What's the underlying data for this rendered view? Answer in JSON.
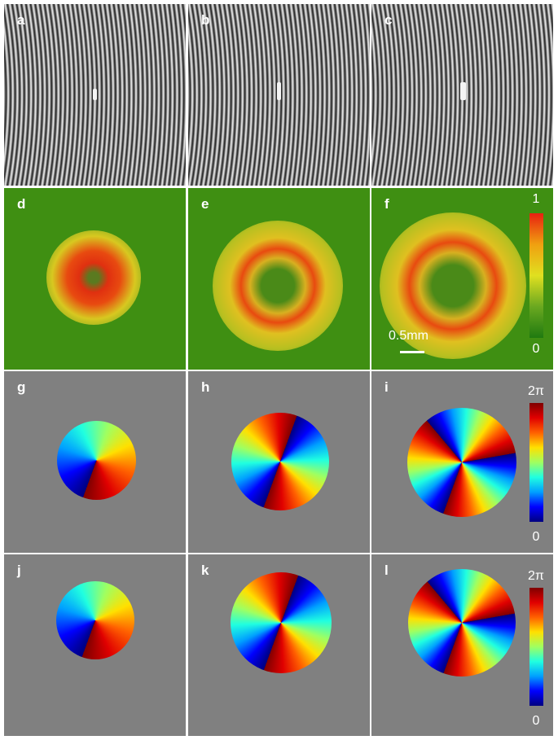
{
  "panels": [
    {
      "label": "a"
    },
    {
      "label": "b"
    },
    {
      "label": "c"
    },
    {
      "label": "d"
    },
    {
      "label": "e"
    },
    {
      "label": "f"
    },
    {
      "label": "g"
    },
    {
      "label": "h"
    },
    {
      "label": "i"
    },
    {
      "label": "j"
    },
    {
      "label": "k"
    },
    {
      "label": "l"
    }
  ],
  "colorbars": [
    {
      "max": "1",
      "min": "0"
    },
    {
      "max": "2π",
      "min": "0"
    },
    {
      "max": "2π",
      "min": "0"
    }
  ],
  "scale_bar": "0.5mm"
}
